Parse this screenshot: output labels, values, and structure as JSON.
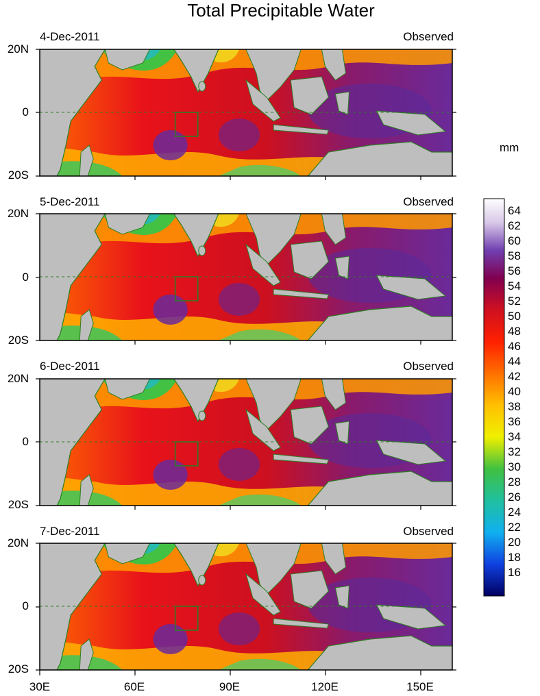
{
  "title": "Total Precipitable Water",
  "panels": [
    {
      "date": "4-Dec-2011",
      "label": "Observed"
    },
    {
      "date": "5-Dec-2011",
      "label": "Observed"
    },
    {
      "date": "6-Dec-2011",
      "label": "Observed"
    },
    {
      "date": "7-Dec-2011",
      "label": "Observed"
    }
  ],
  "lat_labels": [
    "20N",
    "0",
    "20S"
  ],
  "lon_labels": [
    "30E",
    "60E",
    "90E",
    "120E",
    "150E"
  ],
  "colorbar": {
    "unit": "mm",
    "labels": [
      "64",
      "62",
      "60",
      "58",
      "56",
      "54",
      "52",
      "50",
      "48",
      "46",
      "44",
      "42",
      "40",
      "38",
      "36",
      "34",
      "32",
      "30",
      "28",
      "26",
      "24",
      "22",
      "20",
      "18",
      "16"
    ]
  },
  "colors": {
    "land": "#bebebe",
    "coast": "#2e7d22",
    "box": "#2e7d22"
  }
}
